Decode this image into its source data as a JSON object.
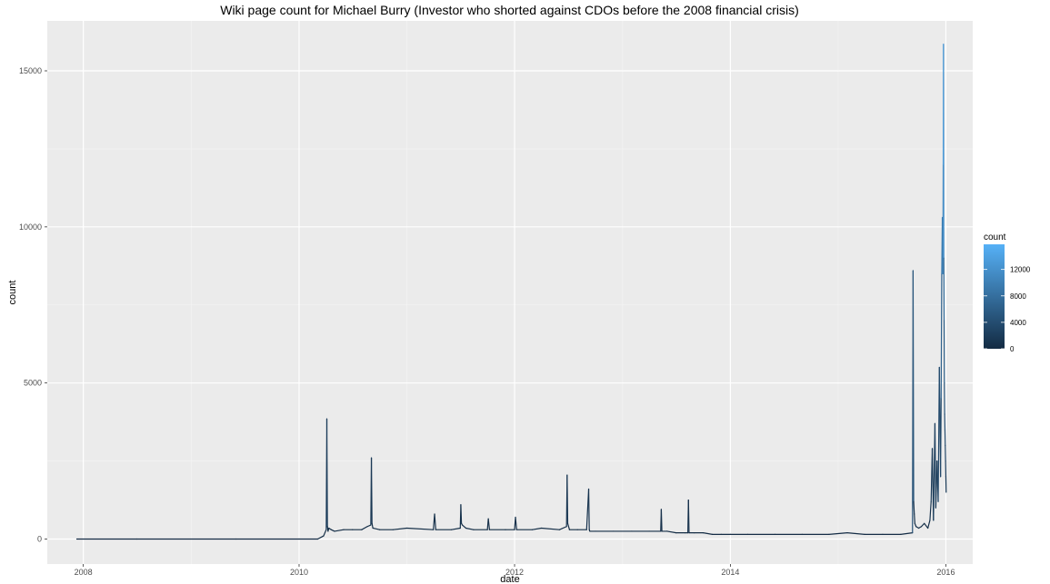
{
  "chart_data": {
    "type": "line",
    "title": "Wiki page count for Michael Burry (Investor who shorted against CDOs before the 2008 financial crisis)",
    "xlabel": "date",
    "ylabel": "count",
    "xlim": [
      "2007-09-01",
      "2016-04-01"
    ],
    "ylim": [
      -800,
      16600
    ],
    "x_ticks": [
      {
        "date": "2008-01-01",
        "label": "2008"
      },
      {
        "date": "2010-01-01",
        "label": "2010"
      },
      {
        "date": "2012-01-01",
        "label": "2012"
      },
      {
        "date": "2014-01-01",
        "label": "2014"
      },
      {
        "date": "2016-01-01",
        "label": "2016"
      }
    ],
    "y_ticks": [
      0,
      5000,
      10000,
      15000
    ],
    "grid": true,
    "legend": {
      "title": "count",
      "placement": "right",
      "type": "colorbar",
      "ticks": [
        0,
        4000,
        8000,
        12000
      ],
      "range": [
        0,
        15800
      ],
      "color_low": "#132B43",
      "color_high": "#56B1F7"
    },
    "series": [
      {
        "x": [
          "2007-12-10",
          "2008-07-01",
          "2009-06-01",
          "2010-01-01",
          "2010-03-05",
          "2010-03-25",
          "2010-04-03",
          "2010-04-05",
          "2010-04-07",
          "2010-04-09",
          "2010-04-12",
          "2010-04-20",
          "2010-05-01",
          "2010-06-01",
          "2010-07-01",
          "2010-08-01",
          "2010-08-20",
          "2010-09-01",
          "2010-09-03",
          "2010-09-05",
          "2010-09-08",
          "2010-10-01",
          "2010-11-15",
          "2011-01-01",
          "2011-04-01",
          "2011-04-05",
          "2011-04-09",
          "2011-06-01",
          "2011-07-01",
          "2011-07-03",
          "2011-07-05",
          "2011-07-08",
          "2011-07-20",
          "2011-08-15",
          "2011-10-01",
          "2011-10-04",
          "2011-10-08",
          "2011-12-01",
          "2012-01-01",
          "2012-01-04",
          "2012-01-08",
          "2012-03-01",
          "2012-04-01",
          "2012-06-01",
          "2012-06-25",
          "2012-06-27",
          "2012-06-29",
          "2012-07-05",
          "2012-08-01",
          "2012-09-01",
          "2012-09-08",
          "2012-09-10",
          "2012-09-12",
          "2012-10-01",
          "2012-12-01",
          "2013-02-01",
          "2013-04-01",
          "2013-05-10",
          "2013-05-12",
          "2013-05-14",
          "2013-06-01",
          "2013-07-01",
          "2013-08-01",
          "2013-08-10",
          "2013-08-12",
          "2013-08-14",
          "2013-09-01",
          "2013-10-01",
          "2013-11-01",
          "2013-12-01",
          "2014-01-01",
          "2014-03-01",
          "2014-06-01",
          "2014-09-01",
          "2014-12-01",
          "2015-02-01",
          "2015-04-01",
          "2015-06-01",
          "2015-08-01",
          "2015-09-10",
          "2015-09-12",
          "2015-09-14",
          "2015-09-16",
          "2015-09-18",
          "2015-09-22",
          "2015-10-01",
          "2015-10-10",
          "2015-10-20",
          "2015-11-01",
          "2015-11-08",
          "2015-11-12",
          "2015-11-16",
          "2015-11-20",
          "2015-11-25",
          "2015-11-28",
          "2015-12-02",
          "2015-12-06",
          "2015-12-10",
          "2015-12-14",
          "2015-12-16",
          "2015-12-18",
          "2015-12-20",
          "2015-12-22",
          "2015-12-23",
          "2015-12-24",
          "2015-12-25",
          "2015-12-26",
          "2015-12-27",
          "2015-12-28",
          "2015-12-29",
          "2015-12-30",
          "2015-12-31",
          "2016-01-01",
          "2016-01-02"
        ],
        "values": [
          0,
          0,
          0,
          0,
          0,
          100,
          300,
          3850,
          400,
          250,
          350,
          300,
          250,
          300,
          300,
          300,
          400,
          450,
          2600,
          500,
          350,
          300,
          300,
          350,
          300,
          800,
          300,
          300,
          350,
          1100,
          500,
          450,
          350,
          300,
          300,
          650,
          300,
          300,
          300,
          700,
          300,
          300,
          350,
          300,
          400,
          2050,
          500,
          300,
          300,
          300,
          1600,
          300,
          250,
          250,
          250,
          250,
          250,
          250,
          950,
          250,
          250,
          200,
          200,
          200,
          1250,
          200,
          200,
          200,
          150,
          150,
          150,
          150,
          150,
          150,
          150,
          200,
          150,
          150,
          150,
          200,
          8600,
          1200,
          800,
          500,
          400,
          350,
          400,
          500,
          350,
          600,
          1200,
          2900,
          600,
          3700,
          1000,
          2500,
          1200,
          5500,
          2000,
          4500,
          8500,
          10300,
          8500,
          12000,
          15850,
          9000,
          7000,
          5000,
          4000,
          3500,
          3000,
          2500,
          2000,
          1500
        ]
      }
    ]
  }
}
